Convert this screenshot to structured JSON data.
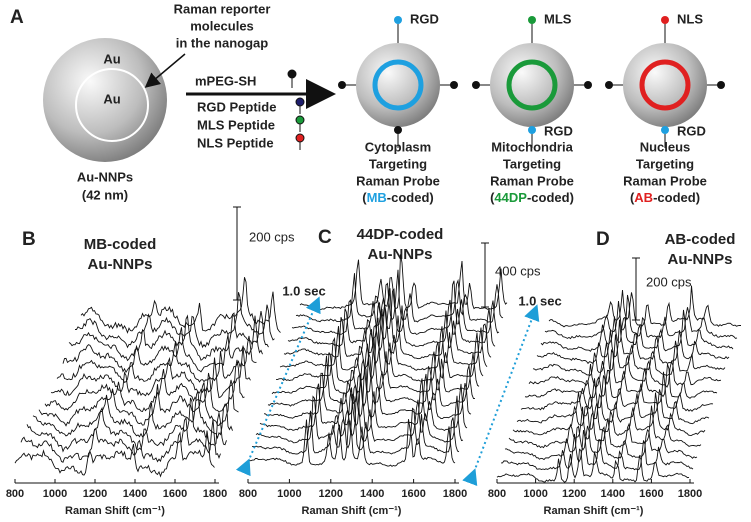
{
  "panel_a": {
    "label": "A",
    "reporter_note": [
      "Raman reporter",
      "molecules",
      "in the nanogap"
    ],
    "shell": "Au",
    "core": "Au",
    "particle": [
      "Au-NNPs",
      "(42 nm)"
    ],
    "reagents": [
      "mPEG-SH",
      "RGD Peptide",
      "MLS Peptide",
      "NLS Peptide"
    ],
    "probes": [
      {
        "top": "RGD",
        "bottom": null,
        "lines": [
          "Cytoplasm",
          "Targeting",
          "Raman Probe"
        ],
        "code_prefix": "(",
        "code": "MB",
        "code_suffix": "-coded)",
        "color": "#1ea0e0"
      },
      {
        "top": "MLS",
        "bottom": "RGD",
        "lines": [
          "Mitochondria",
          "Targeting",
          "Raman Probe"
        ],
        "code_prefix": "(",
        "code": "44DP",
        "code_suffix": "-coded)",
        "color": "#1a9a3a"
      },
      {
        "top": "NLS",
        "bottom": "RGD",
        "lines": [
          "Nucleus",
          "Targeting",
          "Raman Probe"
        ],
        "code_prefix": "(",
        "code": "AB",
        "code_suffix": "-coded)",
        "color": "#e02020"
      }
    ]
  },
  "spectra": {
    "x_label": "Raman Shift (cm⁻¹)",
    "xlim": [
      800,
      1800
    ],
    "xticks": [
      800,
      1000,
      1200,
      1400,
      1600,
      1800
    ],
    "time_label": "1.0 sec",
    "panels": [
      {
        "label": "B",
        "title": [
          "MB-coded",
          "Au-NNPs"
        ],
        "scale": "200 cps"
      },
      {
        "label": "C",
        "title": [
          "44DP-coded",
          "Au-NNPs"
        ],
        "scale": "400 cps"
      },
      {
        "label": "D",
        "title": [
          "AB-coded",
          "Au-NNPs"
        ],
        "scale": "200 cps"
      }
    ]
  }
}
